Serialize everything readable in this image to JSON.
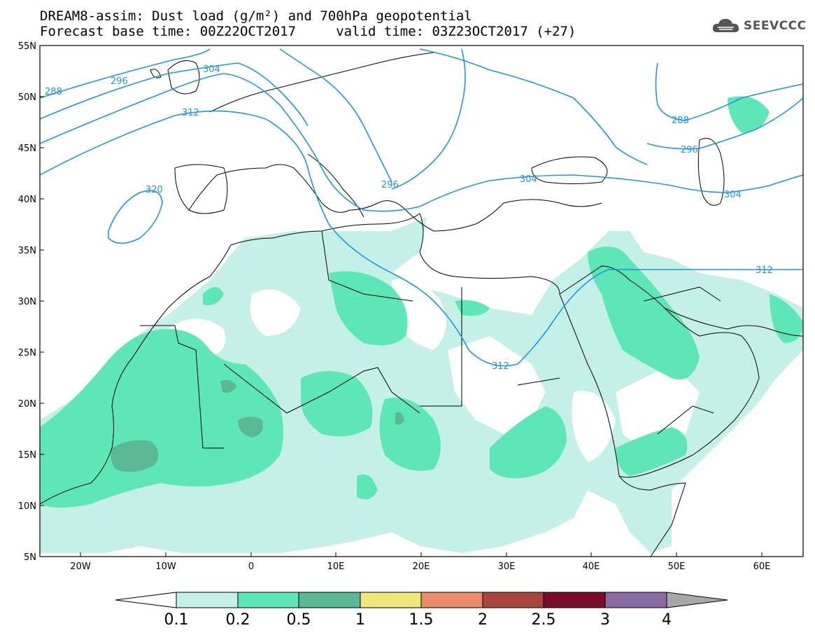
{
  "header": {
    "title_line1": "DREAM8-assim: Dust load (g/m²) and 700hPa geopotential",
    "title_line2": "Forecast base time: 00Z22OCT2017     valid time: 03Z23OCT2017 (+27)"
  },
  "logo": {
    "text": "SEEVCCC",
    "icon": "cloud-icon"
  },
  "map": {
    "lat_labels": [
      "55N",
      "50N",
      "45N",
      "40N",
      "35N",
      "30N",
      "25N",
      "20N",
      "15N",
      "10N",
      "5N"
    ],
    "lon_labels": [
      "20W",
      "10W",
      "0",
      "10E",
      "20E",
      "30E",
      "40E",
      "50E",
      "60E"
    ],
    "contour_labels": [
      "288",
      "296",
      "304",
      "312",
      "320",
      "296",
      "304",
      "312",
      "288",
      "296",
      "304",
      "312"
    ],
    "colors": {
      "contour": "#1e96e6",
      "coast": "#000000"
    }
  },
  "colorbar": {
    "ticks": [
      "0.1",
      "0.2",
      "0.5",
      "1",
      "1.5",
      "2",
      "2.5",
      "3",
      "4"
    ],
    "colors": [
      "#ffffff",
      "#c4f0e8",
      "#5ee6b9",
      "#5cb795",
      "#f0e77a",
      "#e88c6a",
      "#a9473e",
      "#7a0e2a",
      "#8b6aa3",
      "#a8a8a8"
    ]
  }
}
